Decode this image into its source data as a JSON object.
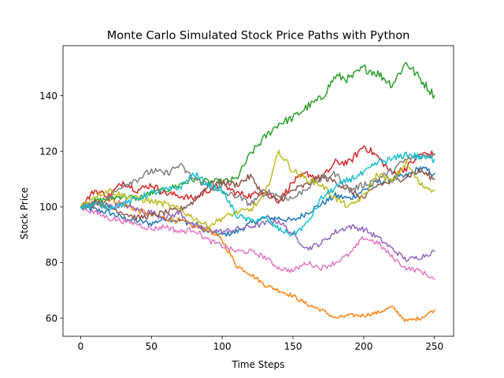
{
  "chart_data": {
    "type": "line",
    "title": "Monte Carlo Simulated Stock Price Paths with Python",
    "xlabel": "Time Steps",
    "ylabel": "Stock Price",
    "xlim": [
      -12.5,
      263.5
    ],
    "ylim": [
      53.5,
      158
    ],
    "xticks": [
      0,
      50,
      100,
      150,
      200,
      250
    ],
    "yticks": [
      60,
      80,
      100,
      120,
      140
    ],
    "grid": false,
    "legend": "none",
    "n_steps": 251,
    "colors": [
      "#1f77b4",
      "#ff7f0e",
      "#2ca02c",
      "#d62728",
      "#9467bd",
      "#8c564b",
      "#e377c2",
      "#7f7f7f",
      "#bcbd22",
      "#17becf"
    ],
    "series": [
      {
        "x": [
          0,
          10,
          20,
          30,
          40,
          50,
          60,
          70,
          80,
          90,
          100,
          110,
          120,
          130,
          140,
          150,
          160,
          170,
          180,
          190,
          200,
          210,
          220,
          230,
          240,
          250
        ],
        "values": [
          100,
          99,
          98,
          96,
          95,
          94,
          96,
          95,
          94,
          91,
          90,
          91,
          94,
          96,
          96,
          95,
          98,
          101,
          104,
          103,
          106,
          109,
          110,
          111,
          114,
          112
        ]
      },
      {
        "x": [
          0,
          10,
          20,
          30,
          40,
          50,
          60,
          70,
          80,
          90,
          100,
          110,
          120,
          130,
          140,
          150,
          160,
          170,
          180,
          190,
          200,
          210,
          220,
          230,
          240,
          250
        ],
        "values": [
          100,
          101,
          103,
          101,
          99,
          97,
          96,
          95,
          93,
          92,
          88,
          79,
          76,
          72,
          70,
          68,
          65,
          63,
          60,
          61,
          61,
          62,
          64,
          59,
          60,
          63
        ]
      },
      {
        "x": [
          0,
          10,
          20,
          30,
          40,
          50,
          60,
          70,
          80,
          90,
          100,
          110,
          120,
          130,
          140,
          150,
          160,
          170,
          180,
          190,
          200,
          210,
          220,
          230,
          240,
          250
        ],
        "values": [
          100,
          102,
          103,
          104,
          103,
          105,
          106,
          108,
          110,
          109,
          109,
          110,
          119,
          125,
          130,
          132,
          136,
          139,
          147,
          146,
          150,
          148,
          144,
          152,
          146,
          140
        ]
      },
      {
        "x": [
          0,
          10,
          20,
          30,
          40,
          50,
          60,
          70,
          80,
          90,
          100,
          110,
          120,
          130,
          140,
          150,
          160,
          170,
          180,
          190,
          200,
          210,
          220,
          230,
          240,
          250
        ],
        "values": [
          100,
          106,
          104,
          109,
          106,
          108,
          105,
          104,
          103,
          106,
          108,
          105,
          104,
          106,
          102,
          109,
          112,
          110,
          116,
          116,
          122,
          118,
          112,
          114,
          119,
          119
        ]
      },
      {
        "x": [
          0,
          10,
          20,
          30,
          40,
          50,
          60,
          70,
          80,
          90,
          100,
          110,
          120,
          130,
          140,
          150,
          160,
          170,
          180,
          190,
          200,
          210,
          220,
          230,
          240,
          250
        ],
        "values": [
          100,
          101,
          100,
          101,
          99,
          98,
          96,
          98,
          93,
          92,
          91,
          92,
          93,
          94,
          95,
          90,
          85,
          87,
          91,
          93,
          92,
          89,
          85,
          81,
          82,
          84
        ]
      },
      {
        "x": [
          0,
          10,
          20,
          30,
          40,
          50,
          60,
          70,
          80,
          90,
          100,
          110,
          120,
          130,
          140,
          150,
          160,
          170,
          180,
          190,
          200,
          210,
          220,
          230,
          240,
          250
        ],
        "values": [
          100,
          102,
          100,
          98,
          96,
          97,
          98,
          99,
          102,
          108,
          109,
          108,
          111,
          104,
          102,
          106,
          108,
          111,
          109,
          106,
          103,
          108,
          109,
          111,
          113,
          110
        ]
      },
      {
        "x": [
          0,
          10,
          20,
          30,
          40,
          50,
          60,
          70,
          80,
          90,
          100,
          110,
          120,
          130,
          140,
          150,
          160,
          170,
          180,
          190,
          200,
          210,
          220,
          230,
          240,
          250
        ],
        "values": [
          100,
          98,
          96,
          95,
          94,
          92,
          93,
          91,
          92,
          88,
          86,
          84,
          84,
          82,
          78,
          77,
          80,
          78,
          80,
          83,
          89,
          87,
          82,
          78,
          77,
          74
        ]
      },
      {
        "x": [
          0,
          10,
          20,
          30,
          40,
          50,
          60,
          70,
          80,
          90,
          100,
          110,
          120,
          130,
          140,
          150,
          160,
          170,
          180,
          190,
          200,
          210,
          220,
          230,
          240,
          250
        ],
        "values": [
          100,
          101,
          103,
          108,
          110,
          113,
          112,
          115,
          110,
          108,
          105,
          104,
          101,
          106,
          104,
          103,
          107,
          110,
          112,
          106,
          108,
          110,
          113,
          117,
          118,
          119
        ]
      },
      {
        "x": [
          0,
          10,
          20,
          30,
          40,
          50,
          60,
          70,
          80,
          90,
          100,
          110,
          120,
          130,
          140,
          150,
          160,
          170,
          180,
          190,
          200,
          210,
          220,
          230,
          240,
          250
        ],
        "values": [
          100,
          104,
          106,
          104,
          103,
          102,
          101,
          99,
          96,
          93,
          96,
          98,
          99,
          104,
          120,
          113,
          110,
          108,
          103,
          100,
          104,
          112,
          109,
          116,
          108,
          106
        ]
      },
      {
        "x": [
          0,
          10,
          20,
          30,
          40,
          50,
          60,
          70,
          80,
          90,
          100,
          110,
          120,
          130,
          140,
          150,
          160,
          170,
          180,
          190,
          200,
          210,
          220,
          230,
          240,
          250
        ],
        "values": [
          100,
          101,
          100,
          101,
          103,
          105,
          106,
          107,
          112,
          108,
          106,
          97,
          95,
          96,
          92,
          90,
          94,
          103,
          107,
          110,
          112,
          116,
          117,
          119,
          118,
          117
        ]
      }
    ]
  }
}
